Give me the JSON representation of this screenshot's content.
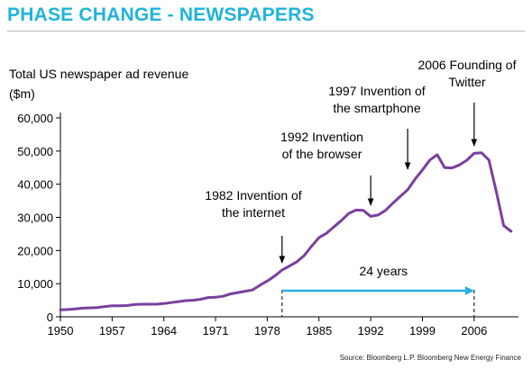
{
  "page": {
    "title": "PHASE CHANGE - NEWSPAPERS",
    "title_color": "#1fb4d9",
    "source": "Source: Bloomberg L.P. Bloomberg New Energy Finance"
  },
  "chart_data": {
    "type": "line",
    "title": "",
    "xlabel": "",
    "ylabel": "Total US newspaper ad revenue\n($m)",
    "xlim": [
      1950,
      2012
    ],
    "ylim": [
      0,
      60000
    ],
    "x_ticks": [
      1950,
      1957,
      1964,
      1971,
      1978,
      1985,
      1992,
      1999,
      2006
    ],
    "y_ticks": [
      0,
      10000,
      20000,
      30000,
      40000,
      50000,
      60000
    ],
    "y_tick_labels": [
      "0",
      "10,000",
      "20,000",
      "30,000",
      "40,000",
      "50,000",
      "60,000"
    ],
    "grid": false,
    "legend": "none",
    "series_color": "#7b3f9e",
    "series": [
      {
        "x": [
          1950,
          1951,
          1952,
          1953,
          1954,
          1955,
          1956,
          1957,
          1958,
          1959,
          1960,
          1961,
          1962,
          1963,
          1964,
          1965,
          1966,
          1967,
          1968,
          1969,
          1970,
          1971,
          1972,
          1973,
          1974,
          1975,
          1976,
          1977,
          1978,
          1979,
          1980,
          1981,
          1982,
          1983,
          1984,
          1985,
          1986,
          1987,
          1988,
          1989,
          1990,
          1991,
          1992,
          1993,
          1994,
          1995,
          1996,
          1997,
          1998,
          1999,
          2000,
          2001,
          2002,
          2003,
          2004,
          2005,
          2006,
          2007,
          2008,
          2009,
          2010,
          2011
        ],
        "y": [
          2100,
          2200,
          2400,
          2600,
          2700,
          2800,
          3100,
          3300,
          3300,
          3400,
          3700,
          3800,
          3800,
          3800,
          4000,
          4300,
          4600,
          4900,
          5000,
          5300,
          5800,
          5900,
          6200,
          6900,
          7300,
          7700,
          8100,
          9500,
          10800,
          12300,
          14100,
          15300,
          16600,
          18500,
          21300,
          23900,
          25200,
          27100,
          29000,
          31100,
          32200,
          32100,
          30300,
          30700,
          32100,
          34300,
          36300,
          38300,
          41500,
          44300,
          47300,
          48900,
          45000,
          44900,
          45800,
          47200,
          49300,
          49500,
          47300,
          37800,
          27500,
          25800
        ]
      }
    ],
    "annotations": [
      {
        "text": "1982 Invention of\nthe internet",
        "x": 1980
      },
      {
        "text": "1992 Invention\nof the browser",
        "x": 1992
      },
      {
        "text": "1997 Invention of\nthe smartphone",
        "x": 1997
      },
      {
        "text": "2006 Founding of\nTwitter",
        "x": 2006
      }
    ],
    "span": {
      "label": "24 years",
      "from": 1980,
      "to": 2006,
      "color": "#2aaee6"
    }
  }
}
